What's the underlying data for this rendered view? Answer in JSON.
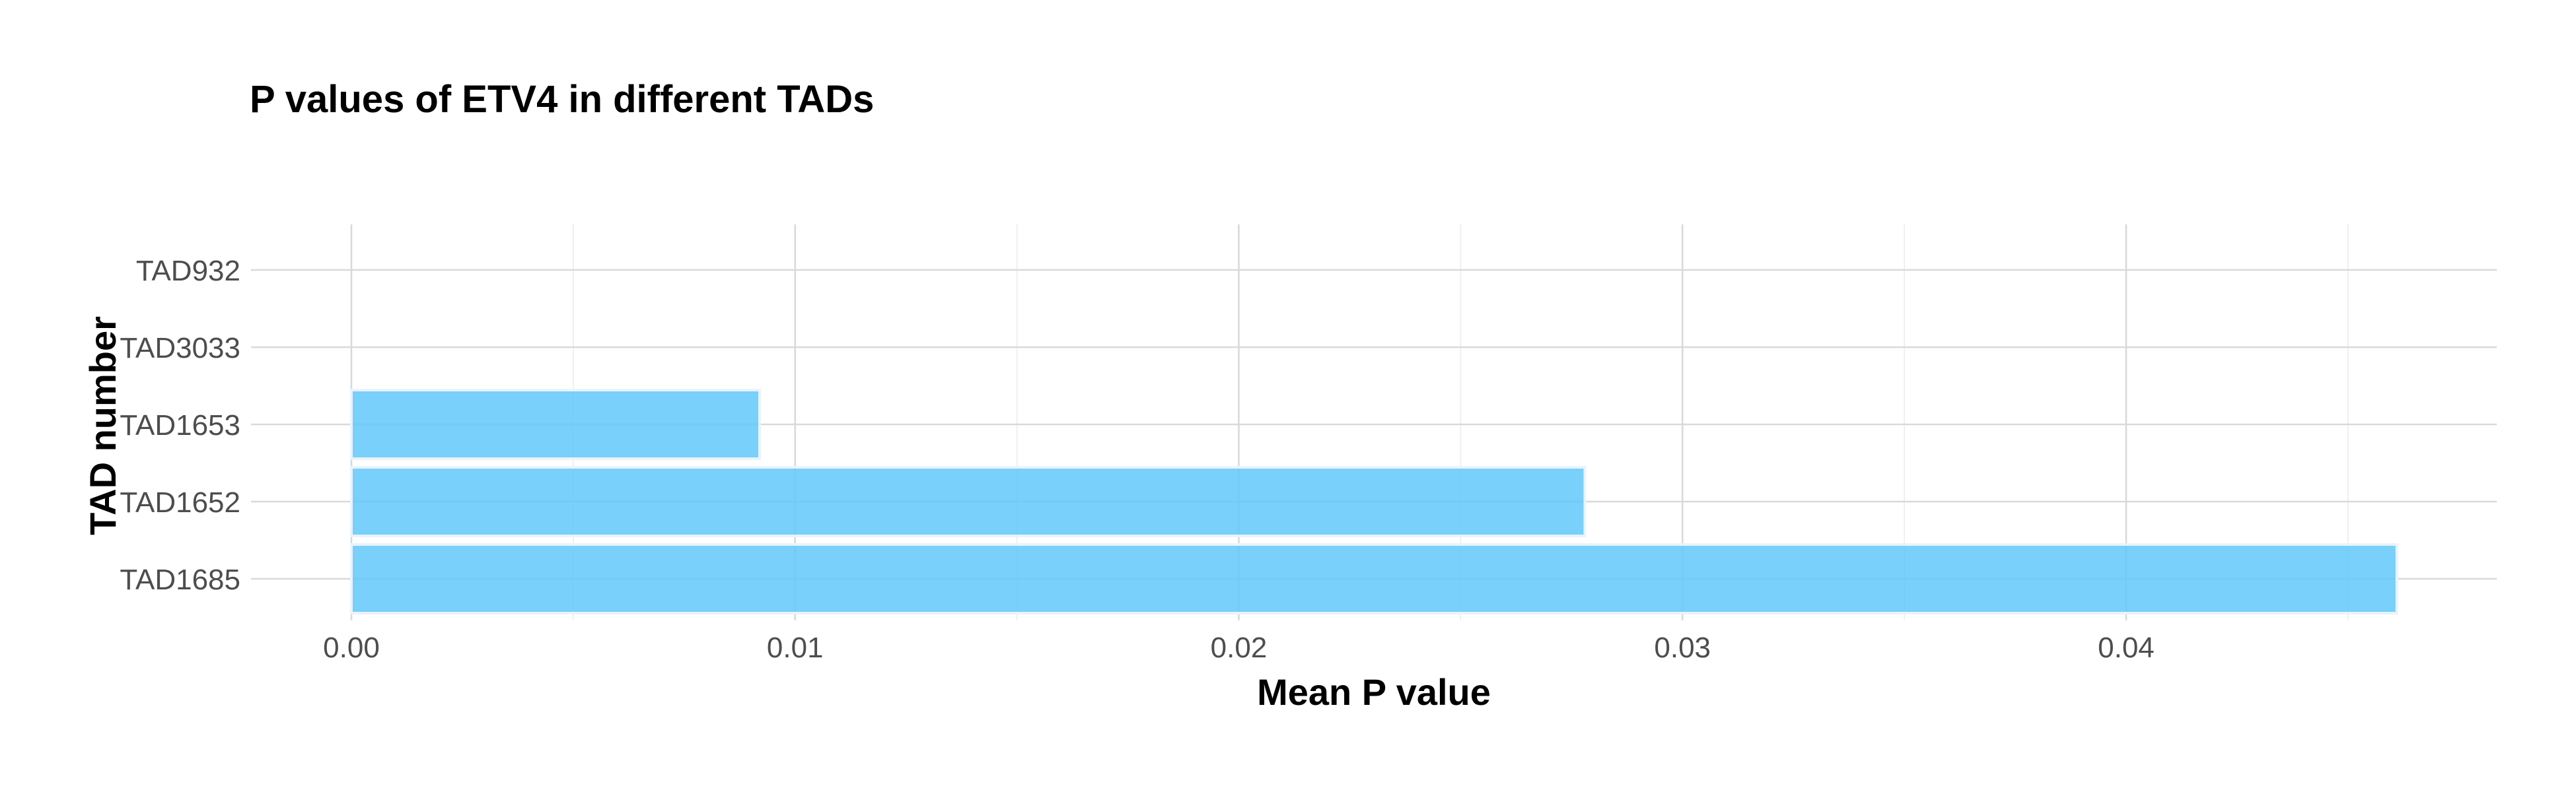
{
  "chart_data": {
    "type": "bar",
    "orientation": "horizontal",
    "title": "P values of ETV4 in different TADs",
    "xlabel": "Mean P value",
    "ylabel": "TAD number",
    "categories": [
      "TAD1685",
      "TAD1652",
      "TAD1653",
      "TAD3033",
      "TAD932"
    ],
    "values": [
      0.0461,
      0.0278,
      0.0092,
      0,
      0
    ],
    "xlim": [
      0,
      0.0485
    ],
    "x_ticks": [
      "0.00",
      "0.01",
      "0.02",
      "0.03",
      "0.04"
    ],
    "x_tick_values": [
      0,
      0.01,
      0.02,
      0.03,
      0.04
    ],
    "grid": true,
    "legend": "none",
    "colors": {
      "bar": "#60c8fa",
      "bar_outline": "#eaf3fb",
      "grid": "#d9d9d9",
      "tick_text": "#4d4d4d",
      "title_text": "#000000"
    }
  }
}
